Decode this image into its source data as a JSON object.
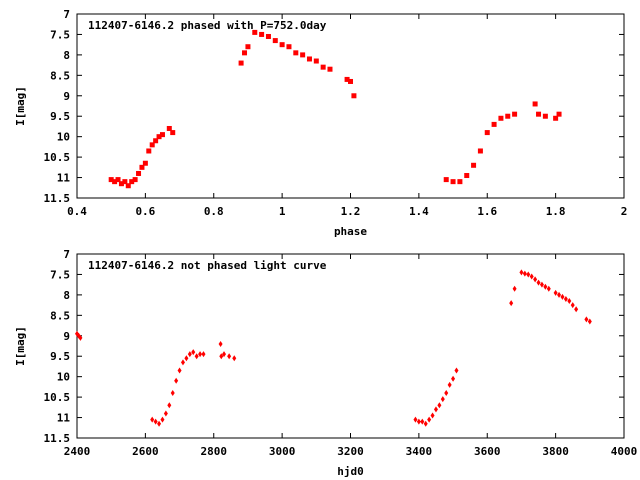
{
  "chart_data": [
    {
      "type": "scatter",
      "title": "112407-6146.2 phased with P=752.0day",
      "xlabel": "phase",
      "ylabel": "I[mag]",
      "xlim": [
        0.4,
        2.0
      ],
      "ylim": [
        7,
        11.5
      ],
      "y_inverted": true,
      "x_ticks": [
        "0.4",
        "0.6",
        "0.8",
        "1",
        "1.2",
        "1.4",
        "1.6",
        "1.8",
        "2"
      ],
      "y_ticks": [
        "7",
        "7.5",
        "8",
        "8.5",
        "9",
        "9.5",
        "10",
        "10.5",
        "11",
        "11.5"
      ],
      "point_color": "#ff0000",
      "series": [
        {
          "x": [
            0.5,
            0.51,
            0.52,
            0.53,
            0.54,
            0.55,
            0.56,
            0.57,
            0.58,
            0.59,
            0.6,
            0.61,
            0.62,
            0.63,
            0.64,
            0.65,
            0.67,
            0.68,
            0.88,
            0.89,
            0.9,
            0.92,
            0.94,
            0.96,
            0.98,
            1.0,
            1.02,
            1.04,
            1.06,
            1.08,
            1.1,
            1.12,
            1.14,
            1.19,
            1.2,
            1.21,
            1.48,
            1.5,
            1.52,
            1.54,
            1.56,
            1.58,
            1.6,
            1.62,
            1.64,
            1.66,
            1.68,
            1.74,
            1.75,
            1.77,
            1.8,
            1.81
          ],
          "y": [
            11.05,
            11.1,
            11.05,
            11.15,
            11.1,
            11.2,
            11.1,
            11.05,
            10.9,
            10.75,
            10.65,
            10.35,
            10.2,
            10.1,
            10.0,
            9.95,
            9.8,
            9.9,
            8.2,
            7.95,
            7.8,
            7.45,
            7.5,
            7.55,
            7.65,
            7.75,
            7.8,
            7.95,
            8.0,
            8.1,
            8.15,
            8.3,
            8.35,
            8.6,
            8.65,
            9.0,
            11.05,
            11.1,
            11.1,
            10.95,
            10.7,
            10.35,
            9.9,
            9.7,
            9.55,
            9.5,
            9.45,
            9.2,
            9.45,
            9.5,
            9.55,
            9.45
          ]
        }
      ]
    },
    {
      "type": "scatter",
      "title": "112407-6146.2 not phased light curve",
      "xlabel": "hjd0",
      "ylabel": "I[mag]",
      "xlim": [
        2400,
        4000
      ],
      "ylim": [
        7,
        11.5
      ],
      "y_inverted": true,
      "x_ticks": [
        "2400",
        "2600",
        "2800",
        "3000",
        "3200",
        "3400",
        "3600",
        "3800",
        "4000"
      ],
      "y_ticks": [
        "7",
        "7.5",
        "8",
        "8.5",
        "9",
        "9.5",
        "10",
        "10.5",
        "11",
        "11.5"
      ],
      "point_color": "#ff0000",
      "series": [
        {
          "x": [
            2400,
            2405,
            2410,
            2620,
            2630,
            2640,
            2650,
            2660,
            2670,
            2680,
            2690,
            2700,
            2710,
            2720,
            2730,
            2740,
            2750,
            2760,
            2770,
            2820,
            2822,
            2830,
            2845,
            2860,
            3390,
            3400,
            3410,
            3420,
            3430,
            3440,
            3450,
            3460,
            3470,
            3480,
            3490,
            3500,
            3510,
            3670,
            3680,
            3700,
            3710,
            3720,
            3730,
            3740,
            3750,
            3760,
            3770,
            3780,
            3800,
            3810,
            3820,
            3830,
            3840,
            3850,
            3860,
            3890,
            3900
          ],
          "y": [
            8.95,
            9.0,
            9.05,
            11.05,
            11.1,
            11.15,
            11.05,
            10.9,
            10.7,
            10.4,
            10.1,
            9.85,
            9.65,
            9.55,
            9.45,
            9.4,
            9.5,
            9.45,
            9.45,
            9.2,
            9.5,
            9.45,
            9.5,
            9.55,
            11.05,
            11.1,
            11.1,
            11.15,
            11.05,
            10.95,
            10.8,
            10.7,
            10.55,
            10.4,
            10.2,
            10.05,
            9.85,
            8.2,
            7.85,
            7.45,
            7.48,
            7.5,
            7.55,
            7.62,
            7.7,
            7.75,
            7.8,
            7.85,
            7.95,
            8.0,
            8.05,
            8.1,
            8.15,
            8.25,
            8.35,
            8.6,
            8.65
          ]
        }
      ]
    }
  ]
}
